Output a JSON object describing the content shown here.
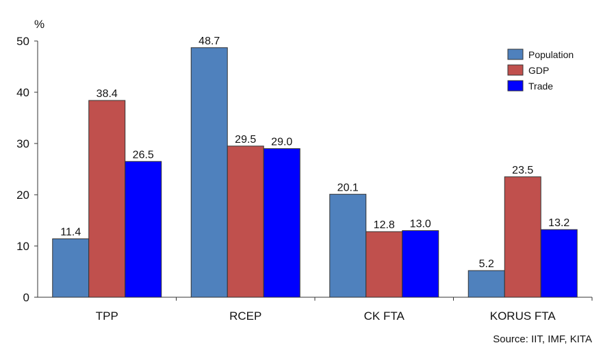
{
  "chart_data": {
    "type": "bar",
    "categories": [
      "TPP",
      "RCEP",
      "CK FTA",
      "KORUS FTA"
    ],
    "series": [
      {
        "name": "Population",
        "color": "#4f81bd",
        "values": [
          11.4,
          48.7,
          20.1,
          5.2
        ]
      },
      {
        "name": "GDP",
        "color": "#c0504d",
        "values": [
          38.4,
          29.5,
          12.8,
          23.5
        ]
      },
      {
        "name": "Trade",
        "color": "#0000ff",
        "values": [
          26.5,
          29.0,
          13.0,
          13.2
        ]
      }
    ],
    "ylim": [
      0,
      50
    ],
    "yticks": [
      0,
      10,
      20,
      30,
      40,
      50
    ],
    "y_unit": "%",
    "grid": false,
    "legend_position": "top-right",
    "source": "Source: IIT, IMF, KITA"
  }
}
